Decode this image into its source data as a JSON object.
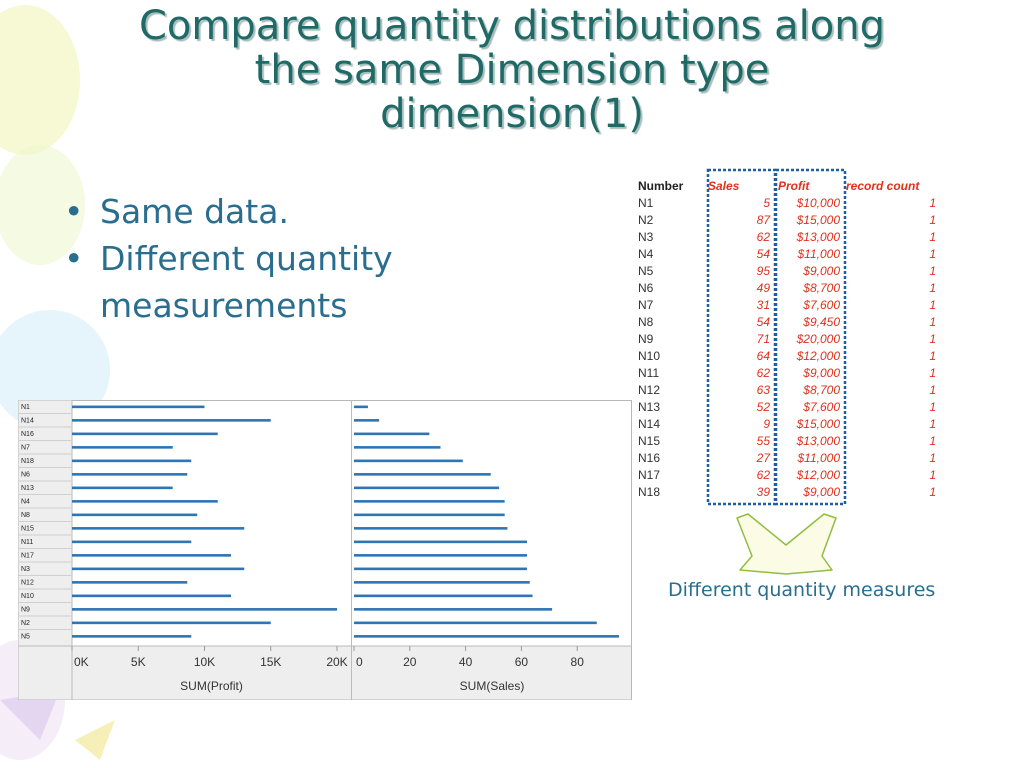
{
  "slide": {
    "title_lines": [
      "Compare quantity distributions along",
      "the same Dimension type",
      "dimension(1)"
    ],
    "bullets": [
      "Same data.",
      "Different quantity measurements"
    ],
    "caption": "Different quantity measures"
  },
  "colors": {
    "title": "#1f6a66",
    "bullet": "#2a6e8f",
    "bar": "#2e75b6",
    "table_red": "#e0301e",
    "dashed_box": "#1f5f9f"
  },
  "table": {
    "columns": [
      "Number",
      "Sales",
      "Profit",
      "record count"
    ],
    "rows": [
      [
        "N1",
        "5",
        "$10,000",
        "1"
      ],
      [
        "N2",
        "87",
        "$15,000",
        "1"
      ],
      [
        "N3",
        "62",
        "$13,000",
        "1"
      ],
      [
        "N4",
        "54",
        "$11,000",
        "1"
      ],
      [
        "N5",
        "95",
        "$9,000",
        "1"
      ],
      [
        "N6",
        "49",
        "$8,700",
        "1"
      ],
      [
        "N7",
        "31",
        "$7,600",
        "1"
      ],
      [
        "N8",
        "54",
        "$9,450",
        "1"
      ],
      [
        "N9",
        "71",
        "$20,000",
        "1"
      ],
      [
        "N10",
        "64",
        "$12,000",
        "1"
      ],
      [
        "N11",
        "62",
        "$9,000",
        "1"
      ],
      [
        "N12",
        "63",
        "$8,700",
        "1"
      ],
      [
        "N13",
        "52",
        "$7,600",
        "1"
      ],
      [
        "N14",
        "9",
        "$15,000",
        "1"
      ],
      [
        "N15",
        "55",
        "$13,000",
        "1"
      ],
      [
        "N16",
        "27",
        "$11,000",
        "1"
      ],
      [
        "N17",
        "62",
        "$12,000",
        "1"
      ],
      [
        "N18",
        "39",
        "$9,000",
        "1"
      ]
    ]
  },
  "chart_data": [
    {
      "type": "bar",
      "orientation": "horizontal",
      "categories": [
        "N1",
        "N14",
        "N16",
        "N7",
        "N18",
        "N6",
        "N13",
        "N4",
        "N8",
        "N15",
        "N11",
        "N17",
        "N3",
        "N12",
        "N10",
        "N9",
        "N2",
        "N5"
      ],
      "values": [
        10000,
        15000,
        11000,
        7600,
        9000,
        8700,
        7600,
        11000,
        9450,
        13000,
        9000,
        12000,
        13000,
        8700,
        12000,
        20000,
        15000,
        9000
      ],
      "xlabel": "SUM(Profit)",
      "xticks": [
        0,
        5000,
        10000,
        15000,
        20000
      ],
      "xtick_labels": [
        "0K",
        "5K",
        "10K",
        "15K",
        "20K"
      ],
      "xlim": [
        0,
        20000
      ]
    },
    {
      "type": "bar",
      "orientation": "horizontal",
      "categories": [
        "N1",
        "N14",
        "N16",
        "N7",
        "N18",
        "N6",
        "N13",
        "N4",
        "N8",
        "N15",
        "N11",
        "N17",
        "N3",
        "N12",
        "N10",
        "N9",
        "N2",
        "N5"
      ],
      "values": [
        5,
        9,
        27,
        31,
        39,
        49,
        52,
        54,
        54,
        55,
        62,
        62,
        62,
        63,
        64,
        71,
        87,
        95
      ],
      "xlabel": "SUM(Sales)",
      "xticks": [
        0,
        20,
        40,
        60,
        80
      ],
      "xtick_labels": [
        "0",
        "20",
        "40",
        "60",
        "80"
      ],
      "xlim": [
        0,
        96
      ]
    }
  ]
}
